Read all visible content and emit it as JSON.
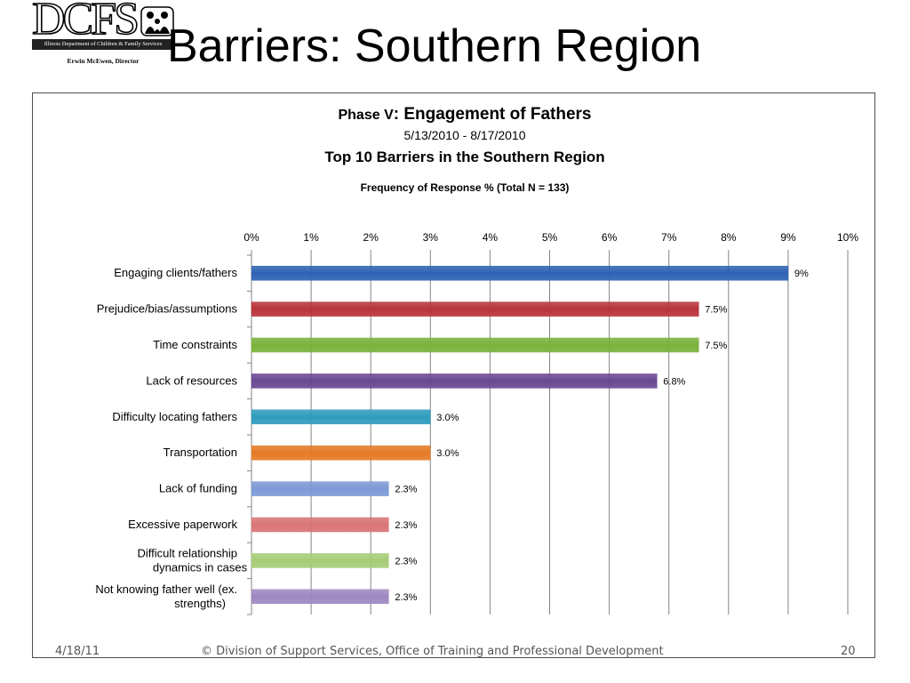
{
  "slide": {
    "title": "Barriers: Southern Region",
    "logo": {
      "letters": "DCFS",
      "banner": "Illinois Department of Children & Family Services",
      "director": "Erwin McEwen, Director"
    },
    "footer": {
      "date": "4/18/11",
      "text": "© Division of Support Services, Office of Training and Professional Development",
      "page": "20"
    }
  },
  "chart_data": {
    "type": "bar",
    "orientation": "horizontal",
    "title_prefix": "Phase V",
    "title": ": Engagement of Fathers",
    "subtitle_date": "5/13/2010 - 8/17/2010",
    "subtitle": "Top 10 Barriers in the Southern Region",
    "axis_title": "Frequency of Response % (Total N = 133)",
    "xlim": [
      0,
      10
    ],
    "ticks": [
      "0%",
      "1%",
      "2%",
      "3%",
      "4%",
      "5%",
      "6%",
      "7%",
      "8%",
      "9%",
      "10%"
    ],
    "tick_values": [
      0,
      1,
      2,
      3,
      4,
      5,
      6,
      7,
      8,
      9,
      10
    ],
    "axis_position": "top",
    "grid": "vertical",
    "legend": "none",
    "categories": [
      "Engaging clients/fathers",
      "Prejudice/bias/assumptions",
      "Time constraints",
      "Lack of resources",
      "Difficulty locating fathers",
      "Transportation",
      "Lack of funding",
      "Excessive paperwork",
      "Difficult relationship dynamics in cases",
      "Not knowing father well (ex. strengths)"
    ],
    "values": [
      9.0,
      7.5,
      7.5,
      6.8,
      3.0,
      3.0,
      2.3,
      2.3,
      2.3,
      2.3
    ],
    "data_labels": [
      "9%",
      "7.5%",
      "7.5%",
      "6.8%",
      "3.0%",
      "3.0%",
      "2.3%",
      "2.3%",
      "2.3%",
      "2.3%"
    ],
    "colors": [
      "#2e62b3",
      "#b8343a",
      "#7ab23a",
      "#6a4793",
      "#2f9cbc",
      "#e47a25",
      "#7d9ad6",
      "#d87476",
      "#a6cc76",
      "#9e88c0"
    ]
  }
}
